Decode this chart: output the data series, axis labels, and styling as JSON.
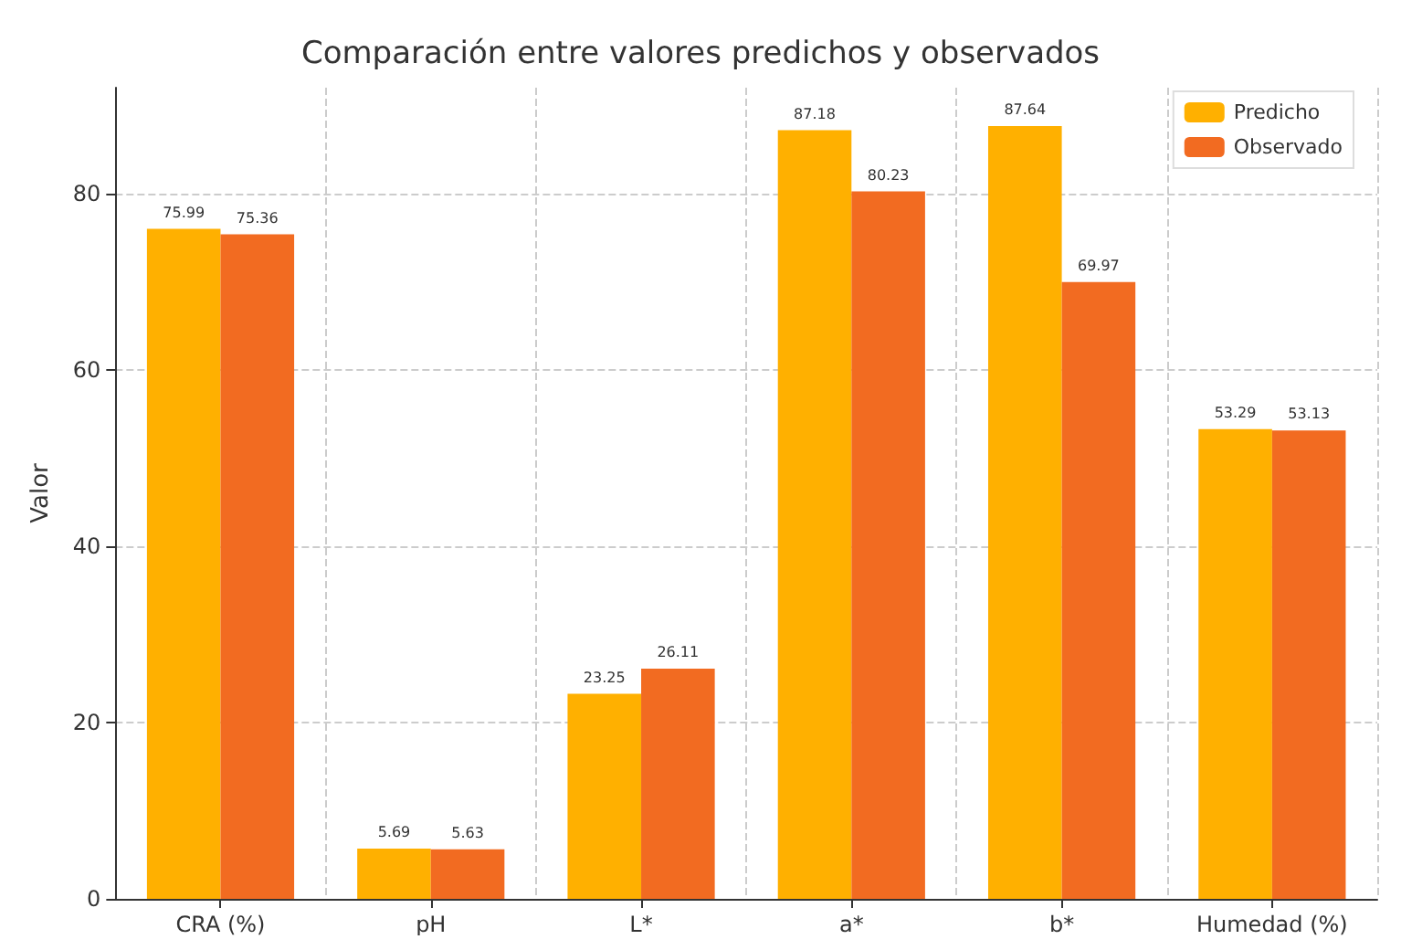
{
  "chart_data": {
    "type": "bar",
    "title": "Comparación entre valores predichos y observados",
    "ylabel": "Valor",
    "categories": [
      "CRA (%)",
      "pH",
      "L*",
      "a*",
      "b*",
      "Humedad (%)"
    ],
    "series": [
      {
        "name": "Predicho",
        "color": "#ffb000",
        "values": [
          75.99,
          5.69,
          23.25,
          87.18,
          87.64,
          53.29
        ]
      },
      {
        "name": "Observado",
        "color": "#f26b21",
        "values": [
          75.36,
          5.63,
          26.11,
          80.23,
          69.97,
          53.13
        ]
      }
    ],
    "ylim": [
      0,
      92
    ],
    "yticks": [
      0,
      20,
      40,
      60,
      80
    ],
    "grid": true,
    "legend": "top right",
    "data_labels": true
  }
}
